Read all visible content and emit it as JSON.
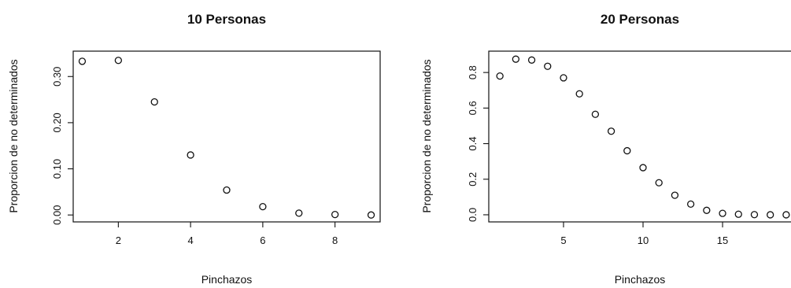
{
  "chart_data": [
    {
      "type": "scatter",
      "title": "10 Personas",
      "xlabel": "Pinchazos",
      "ylabel": "Proporcion de no determinados",
      "xlim": [
        0.75,
        9.25
      ],
      "ylim": [
        -0.015,
        0.355
      ],
      "xticks": [
        2,
        4,
        6,
        8
      ],
      "yticks": [
        0.0,
        0.1,
        0.2,
        0.3
      ],
      "yticklabels": [
        "0.00",
        "0.10",
        "0.20",
        "0.30"
      ],
      "grid": false,
      "series": [
        {
          "x": [
            1,
            2,
            3,
            4,
            5,
            6,
            7,
            8,
            9
          ],
          "y": [
            0.333,
            0.335,
            0.245,
            0.13,
            0.054,
            0.018,
            0.004,
            0.001,
            0.0
          ]
        }
      ]
    },
    {
      "type": "scatter",
      "title": "20 Personas",
      "xlabel": "Pinchazos",
      "ylabel": "Proporcion de no determinados",
      "xlim": [
        0.3,
        19.6
      ],
      "ylim": [
        -0.04,
        0.92
      ],
      "xticks": [
        5,
        10,
        15
      ],
      "yticks": [
        0.0,
        0.2,
        0.4,
        0.6,
        0.8
      ],
      "yticklabels": [
        "0.0",
        "0.2",
        "0.4",
        "0.6",
        "0.8"
      ],
      "grid": false,
      "series": [
        {
          "x": [
            1,
            2,
            3,
            4,
            5,
            6,
            7,
            8,
            9,
            10,
            11,
            12,
            13,
            14,
            15,
            16,
            17,
            18,
            19
          ],
          "y": [
            0.78,
            0.875,
            0.87,
            0.835,
            0.77,
            0.68,
            0.565,
            0.47,
            0.36,
            0.265,
            0.18,
            0.11,
            0.06,
            0.025,
            0.008,
            0.003,
            0.001,
            0.0,
            0.0
          ]
        }
      ]
    }
  ]
}
